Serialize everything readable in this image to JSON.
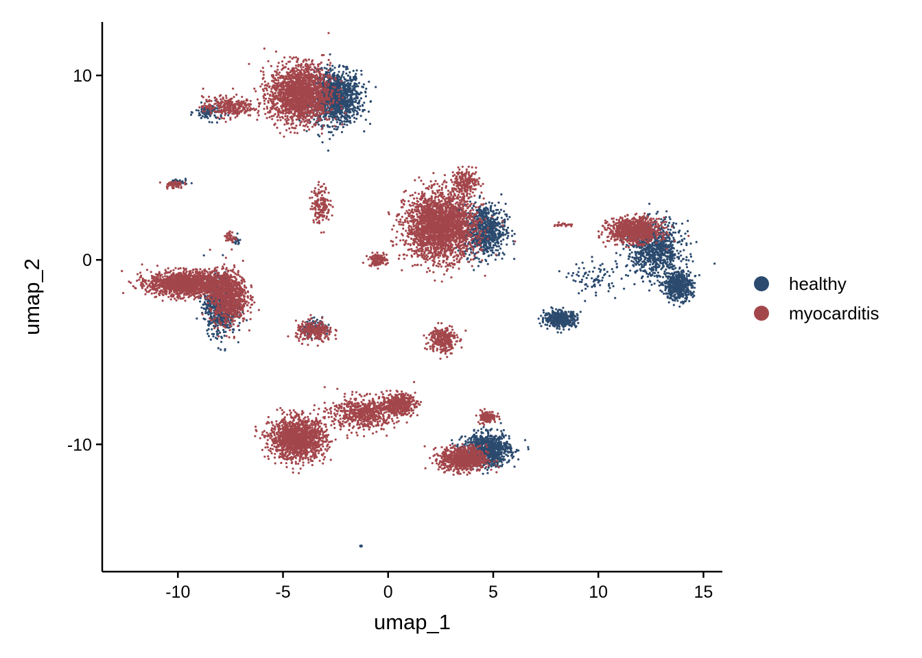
{
  "chart_data": {
    "type": "scatter",
    "title": "",
    "xlabel": "umap_1",
    "ylabel": "umap_2",
    "xlim": [
      -13.6,
      15.9
    ],
    "ylim": [
      -16.9,
      12.9
    ],
    "x_ticks": [
      -10,
      -5,
      0,
      5,
      10,
      15
    ],
    "x_tick_labels": [
      "-10",
      "-5",
      "0",
      "5",
      "10",
      "15"
    ],
    "y_ticks": [
      -10,
      0,
      10
    ],
    "y_tick_labels": [
      "-10",
      "0",
      "10"
    ],
    "grid": false,
    "legend_position": "right",
    "series": [
      {
        "name": "healthy",
        "color": "#2b4a6e"
      },
      {
        "name": "myocarditis",
        "color": "#a3464b"
      }
    ],
    "clusters": [
      {
        "series": "healthy",
        "center": [
          -2.5,
          8.8
        ],
        "spread": [
          1.1,
          1.3
        ],
        "n": 1200
      },
      {
        "series": "myocarditis",
        "center": [
          -4.2,
          9.0
        ],
        "spread": [
          1.3,
          1.4
        ],
        "n": 1800
      },
      {
        "series": "myocarditis",
        "center": [
          -7.6,
          8.3
        ],
        "spread": [
          1.1,
          0.5
        ],
        "n": 300
      },
      {
        "series": "healthy",
        "center": [
          -8.5,
          8.0
        ],
        "spread": [
          0.6,
          0.4
        ],
        "n": 100
      },
      {
        "series": "myocarditis",
        "center": [
          -3.2,
          3.0
        ],
        "spread": [
          0.4,
          0.9
        ],
        "n": 160
      },
      {
        "series": "myocarditis",
        "center": [
          -10.2,
          4.1
        ],
        "spread": [
          0.4,
          0.2
        ],
        "n": 60
      },
      {
        "series": "healthy",
        "center": [
          -10.0,
          4.2
        ],
        "spread": [
          0.4,
          0.2
        ],
        "n": 30
      },
      {
        "series": "myocarditis",
        "center": [
          -7.5,
          1.2
        ],
        "spread": [
          0.2,
          0.3
        ],
        "n": 40
      },
      {
        "series": "healthy",
        "center": [
          -7.2,
          1.0
        ],
        "spread": [
          0.2,
          0.3
        ],
        "n": 15
      },
      {
        "series": "myocarditis",
        "center": [
          2.5,
          1.8
        ],
        "spread": [
          1.5,
          1.6
        ],
        "n": 2400
      },
      {
        "series": "healthy",
        "center": [
          4.6,
          1.6
        ],
        "spread": [
          0.9,
          1.3
        ],
        "n": 700
      },
      {
        "series": "myocarditis",
        "center": [
          3.7,
          4.2
        ],
        "spread": [
          0.6,
          0.6
        ],
        "n": 200
      },
      {
        "series": "myocarditis",
        "center": [
          -0.5,
          0.0
        ],
        "spread": [
          0.4,
          0.3
        ],
        "n": 120
      },
      {
        "series": "myocarditis",
        "center": [
          2.6,
          -4.3
        ],
        "spread": [
          0.6,
          0.7
        ],
        "n": 250
      },
      {
        "series": "healthy",
        "center": [
          -8.0,
          -2.5
        ],
        "spread": [
          0.7,
          1.4
        ],
        "n": 700
      },
      {
        "series": "myocarditis",
        "center": [
          -9.5,
          -1.3
        ],
        "spread": [
          1.7,
          0.6
        ],
        "n": 1500
      },
      {
        "series": "myocarditis",
        "center": [
          -7.6,
          -2.0
        ],
        "spread": [
          0.8,
          1.3
        ],
        "n": 800
      },
      {
        "series": "myocarditis",
        "center": [
          -3.5,
          -3.9
        ],
        "spread": [
          0.8,
          0.5
        ],
        "n": 250
      },
      {
        "series": "healthy",
        "center": [
          -3.4,
          -3.7
        ],
        "spread": [
          0.6,
          0.4
        ],
        "n": 100
      },
      {
        "series": "healthy",
        "center": [
          12.7,
          0.5
        ],
        "spread": [
          1.2,
          1.4
        ],
        "n": 800
      },
      {
        "series": "healthy",
        "center": [
          13.8,
          -1.4
        ],
        "spread": [
          0.6,
          0.7
        ],
        "n": 500
      },
      {
        "series": "myocarditis",
        "center": [
          11.7,
          1.6
        ],
        "spread": [
          1.1,
          0.6
        ],
        "n": 900
      },
      {
        "series": "healthy",
        "center": [
          8.2,
          -3.2
        ],
        "spread": [
          0.7,
          0.4
        ],
        "n": 400
      },
      {
        "series": "healthy",
        "center": [
          9.8,
          -1.0
        ],
        "spread": [
          1.0,
          0.8
        ],
        "n": 80
      },
      {
        "series": "myocarditis",
        "center": [
          8.3,
          1.9
        ],
        "spread": [
          0.4,
          0.1
        ],
        "n": 25
      },
      {
        "series": "myocarditis",
        "center": [
          -4.3,
          -9.7
        ],
        "spread": [
          1.2,
          1.0
        ],
        "n": 1400
      },
      {
        "series": "myocarditis",
        "center": [
          -1.2,
          -8.3
        ],
        "spread": [
          1.4,
          0.8
        ],
        "n": 600
      },
      {
        "series": "myocarditis",
        "center": [
          0.5,
          -7.8
        ],
        "spread": [
          0.7,
          0.5
        ],
        "n": 400
      },
      {
        "series": "healthy",
        "center": [
          4.7,
          -10.3
        ],
        "spread": [
          1.0,
          0.8
        ],
        "n": 900
      },
      {
        "series": "myocarditis",
        "center": [
          3.6,
          -10.8
        ],
        "spread": [
          1.0,
          0.6
        ],
        "n": 800
      },
      {
        "series": "myocarditis",
        "center": [
          4.7,
          -8.5
        ],
        "spread": [
          0.4,
          0.3
        ],
        "n": 120
      },
      {
        "series": "healthy",
        "center": [
          -1.3,
          -15.5
        ],
        "spread": [
          0.06,
          0.06
        ],
        "n": 8
      }
    ]
  }
}
